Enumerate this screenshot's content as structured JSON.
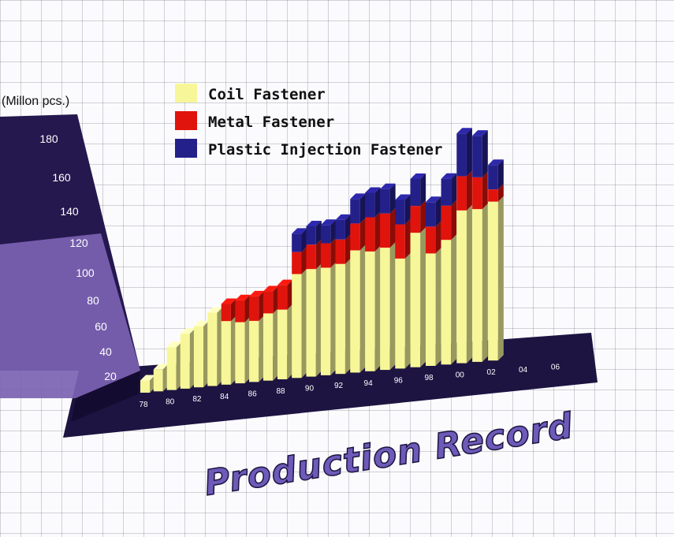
{
  "chart_data": {
    "type": "bar",
    "stacked": true,
    "title": "Production Record",
    "ylabel": "(Millon pcs.)",
    "ylim": [
      0,
      190
    ],
    "yticks": [
      20,
      40,
      60,
      80,
      100,
      120,
      140,
      160,
      180
    ],
    "categories": [
      "78",
      "",
      "80",
      "",
      "82",
      "",
      "84",
      "",
      "86",
      "",
      "88",
      "",
      "90",
      "",
      "92",
      "",
      "94",
      "",
      "96",
      "",
      "98",
      "",
      "00",
      "",
      "02",
      "",
      "04",
      "",
      "06"
    ],
    "xtick_labels": [
      "78",
      "80",
      "82",
      "84",
      "86",
      "88",
      "90",
      "92",
      "94",
      "96",
      "98",
      "00",
      "02",
      "04",
      "06"
    ],
    "series": [
      {
        "name": "Coil Fastener",
        "color": "#f7f79a",
        "values": [
          10,
          18,
          35,
          45,
          50,
          60,
          52,
          50,
          50,
          55,
          57,
          85,
          88,
          88,
          90,
          100,
          98,
          100,
          90,
          110,
          92,
          102,
          125,
          125,
          130,
          null,
          null,
          null,
          null
        ]
      },
      {
        "name": "Metal Fastener",
        "color": "#e0140c",
        "values": [
          0,
          0,
          0,
          0,
          0,
          0,
          14,
          18,
          20,
          18,
          20,
          18,
          20,
          20,
          20,
          22,
          28,
          28,
          28,
          22,
          22,
          28,
          28,
          26,
          10,
          null,
          null,
          null,
          null
        ]
      },
      {
        "name": "Plastic Injection Fastener",
        "color": "#24208a",
        "values": [
          0,
          0,
          0,
          0,
          0,
          0,
          0,
          0,
          0,
          0,
          0,
          15,
          15,
          15,
          16,
          20,
          20,
          20,
          20,
          22,
          20,
          22,
          35,
          34,
          20,
          null,
          null,
          null,
          null
        ]
      }
    ],
    "legend_position": "top",
    "grid": false
  },
  "colors": {
    "wall_dark": "#24184e",
    "wall_light": "#7c63b3",
    "floor": "#1d1442",
    "title_fill": "#6e5ab8",
    "title_stroke": "#1c1440"
  }
}
